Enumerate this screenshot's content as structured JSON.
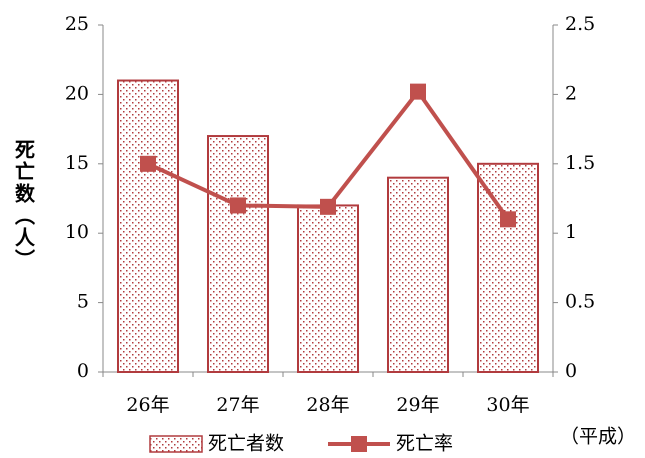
{
  "chart_data": {
    "type": "bar",
    "y_label": "死亡数（人）",
    "x_unit": "（平成）",
    "categories": [
      "26年",
      "27年",
      "28年",
      "29年",
      "30年"
    ],
    "series": [
      {
        "name": "死亡者数",
        "type": "bar",
        "color": "#b13b3e",
        "values": [
          21,
          17,
          12,
          14,
          15
        ]
      },
      {
        "name": "死亡率",
        "type": "line",
        "axis": "y2",
        "color": "#c0504d",
        "values": [
          1.5,
          1.2,
          1.19,
          2.02,
          1.1
        ]
      }
    ],
    "ylim": [
      0,
      25
    ],
    "yticks": [
      0,
      5,
      10,
      15,
      20,
      25
    ],
    "y2lim": [
      0,
      2.5
    ],
    "y2ticks": [
      0,
      0.5,
      1,
      1.5,
      2,
      2.5
    ]
  }
}
